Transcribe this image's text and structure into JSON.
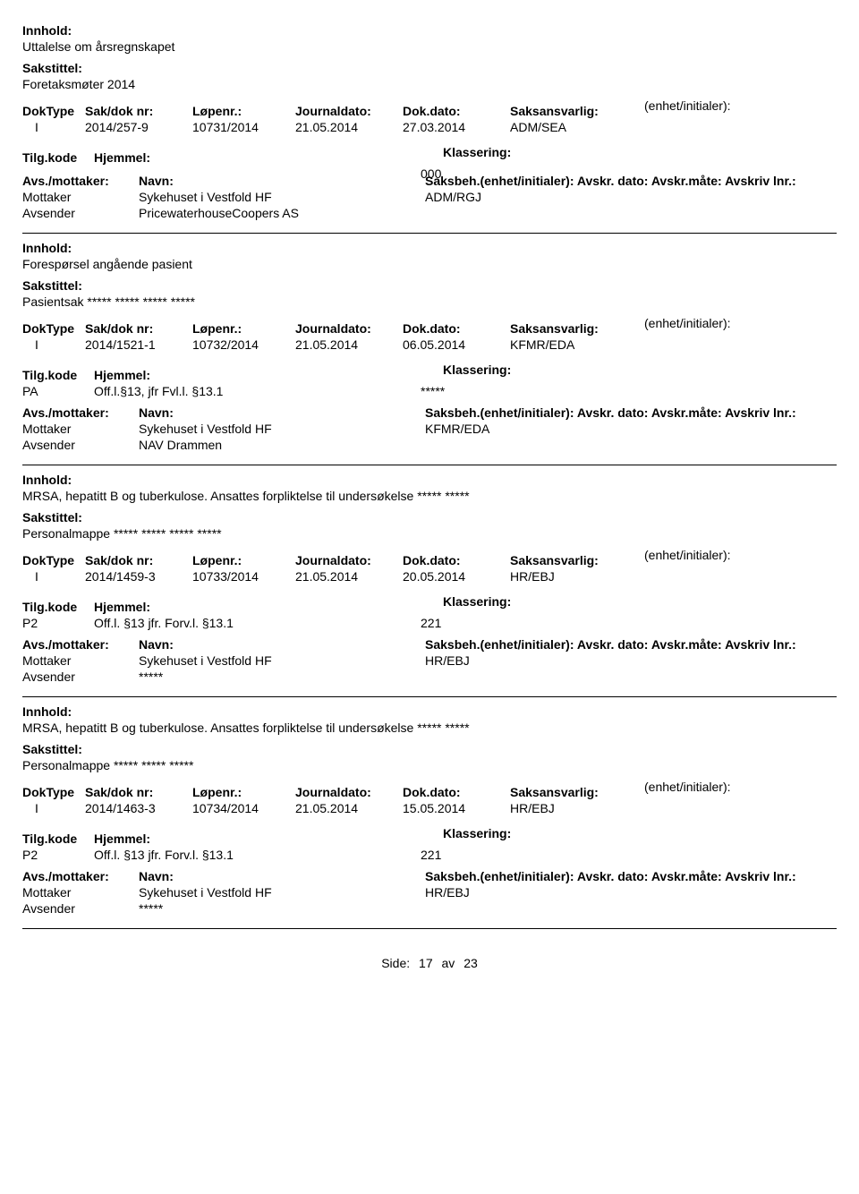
{
  "labels": {
    "innhold": "Innhold:",
    "sakstittel": "Sakstittel:",
    "doktype": "DokType",
    "sakdok": "Sak/dok nr:",
    "lopenr": "Løpenr.:",
    "journaldato": "Journaldato:",
    "dokdato": "Dok.dato:",
    "saksansvarlig": "Saksansvarlig:",
    "enhet": "(enhet/initialer):",
    "tilgkode": "Tilg.kode",
    "hjemmel": "Hjemmel:",
    "klassering": "Klassering:",
    "avsmottaker": "Avs./mottaker:",
    "navn": "Navn:",
    "saksbeh_line": "Saksbeh.(enhet/initialer): Avskr. dato: Avskr.måte: Avskriv lnr.:",
    "mottaker": "Mottaker",
    "avsender": "Avsender",
    "side": "Side:",
    "av": "av"
  },
  "footer": {
    "page": "17",
    "total": "23"
  },
  "records": [
    {
      "innhold": "Uttalelse om årsregnskapet",
      "sakstittel": "Foretaksmøter 2014",
      "doktype": "I",
      "sakdok": "2014/257-9",
      "lopenr": "10731/2014",
      "journaldato": "21.05.2014",
      "dokdato": "27.03.2014",
      "saksansvarlig": "ADM/SEA",
      "tilgkode": "",
      "hjemmel": "",
      "klassering": "000",
      "mottaker_name": "Sykehuset i Vestfold HF",
      "mottaker_beh": "ADM/RGJ",
      "avsender_name": "PricewaterhouseCoopers AS"
    },
    {
      "innhold": "Forespørsel angående pasient",
      "sakstittel": "Pasientsak ***** ***** ***** *****",
      "doktype": "I",
      "sakdok": "2014/1521-1",
      "lopenr": "10732/2014",
      "journaldato": "21.05.2014",
      "dokdato": "06.05.2014",
      "saksansvarlig": "KFMR/EDA",
      "tilgkode": "PA",
      "hjemmel": "Off.l.§13, jfr Fvl.l. §13.1",
      "klassering": "*****",
      "mottaker_name": "Sykehuset i Vestfold HF",
      "mottaker_beh": "KFMR/EDA",
      "avsender_name": "NAV Drammen"
    },
    {
      "innhold": "MRSA, hepatitt B og tuberkulose. Ansattes forpliktelse til undersøkelse ***** *****",
      "sakstittel": "Personalmappe ***** ***** ***** *****",
      "doktype": "I",
      "sakdok": "2014/1459-3",
      "lopenr": "10733/2014",
      "journaldato": "21.05.2014",
      "dokdato": "20.05.2014",
      "saksansvarlig": "HR/EBJ",
      "tilgkode": "P2",
      "hjemmel": "Off.l. §13  jfr. Forv.l. §13.1",
      "klassering": "221",
      "mottaker_name": "Sykehuset i Vestfold HF",
      "mottaker_beh": "HR/EBJ",
      "avsender_name": "*****"
    },
    {
      "innhold": "MRSA, hepatitt B og tuberkulose. Ansattes forpliktelse til undersøkelse ***** *****",
      "sakstittel": "Personalmappe ***** ***** *****",
      "doktype": "I",
      "sakdok": "2014/1463-3",
      "lopenr": "10734/2014",
      "journaldato": "21.05.2014",
      "dokdato": "15.05.2014",
      "saksansvarlig": "HR/EBJ",
      "tilgkode": "P2",
      "hjemmel": "Off.l. §13  jfr. Forv.l. §13.1",
      "klassering": "221",
      "mottaker_name": "Sykehuset i Vestfold HF",
      "mottaker_beh": "HR/EBJ",
      "avsender_name": "*****"
    }
  ]
}
